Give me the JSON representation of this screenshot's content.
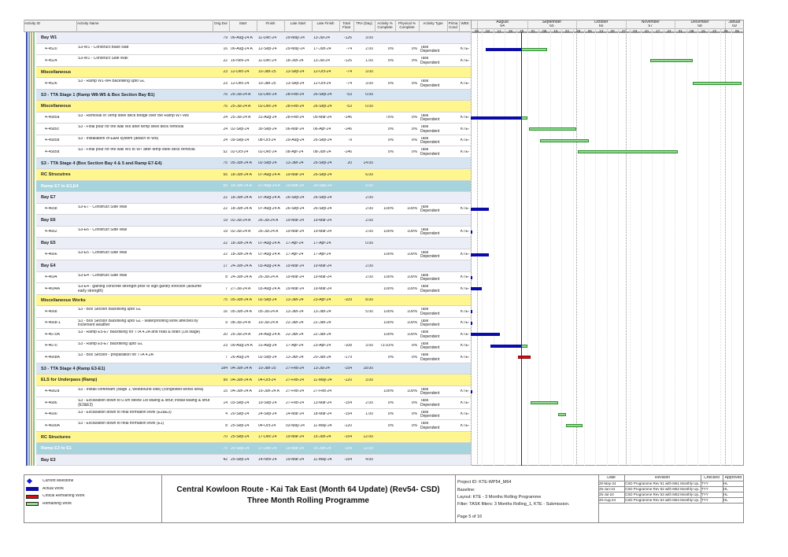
{
  "table": {
    "columns": [
      "Activity ID",
      "Activity Name",
      "Orig Dur",
      "Start",
      "Finish",
      "Late Start",
      "Late Finish",
      "Total Float",
      "TRA (Day)",
      "Activity % Complete",
      "Physical % Complete",
      "Activity Type",
      "Prima Cond",
      "WBS"
    ],
    "rows": [
      [
        null,
        "Bay W1",
        79,
        "06-Aug-24 A",
        "11-Dec-24",
        "29-May-24",
        "13-Jul-24",
        -126,
        "3.00"
      ],
      [
        "4-4520",
        "S3-W1 - Construct Base slab",
        16,
        "06-Aug-24 A",
        "12-Sep-24",
        "29-May-24",
        "17-Jun-24",
        -74,
        "2.00",
        "0%",
        "0%",
        "Task Dependent",
        null,
        "KTE-\\"
      ],
      [
        "4-4524",
        "S3-W1 - Construct Side Wall",
        22,
        "16-Nov-24",
        "11-Dec-24",
        "18-Jun-24",
        "13-Jul-24",
        -126,
        "1.00",
        "0%",
        "0%",
        "Task Dependent",
        null,
        "KTE-\\"
      ],
      [
        null,
        "Miscellaneous",
        23,
        "12-Dec-24",
        "10-Jan-25",
        "13-Sep-24",
        "12-Oct-24",
        -74,
        "3.00"
      ],
      [
        "4-4526",
        "S3 - Ramp W1-W4 Backfilling upto GL",
        23,
        "12-Dec-24",
        "10-Jan-25",
        "13-Sep-24",
        "12-Oct-24",
        -74,
        "3.00",
        "0%",
        "0%",
        "Task Dependent",
        null,
        "KTE-\\"
      ],
      [
        null,
        "S3 - TTA Stage 1 (Ramp W8-W5 & Box Section Bay B1)",
        76,
        "25-Jul-24 A",
        "02-Dec-24",
        "28-Feb-24",
        "26-Sep-24",
        -53,
        "0.00"
      ],
      [
        null,
        "Miscellaneous",
        76,
        "25-Jul-24 A",
        "02-Dec-24",
        "28-Feb-24",
        "26-Sep-24",
        -53,
        "0.00"
      ],
      [
        "4-4585a",
        "S3 - Removal of Temp steel deck bridge over the Ramp W7-W8",
        24,
        "25-Jul-24 A",
        "31-Aug-24",
        "28-Feb-24",
        "05-Mar-24",
        -146,
        null,
        "75%",
        "0%",
        "Task Dependent",
        null,
        "KTE-\\"
      ],
      [
        "4-4585c",
        "S3 - Final pour for the wall W8 after temp steel deck removal",
        24,
        "02-Sep-24",
        "30-Sep-24",
        "06-Mar-24",
        "06-Apr-24",
        -146,
        null,
        "0%",
        "0%",
        "Task Dependent",
        null,
        "KTE-\\"
      ],
      [
        "4-4585b",
        "S3 - Installation of E&M system (attach to W8)",
        24,
        "09-Sep-24",
        "08-Oct-24",
        "29-Aug-24",
        "26-Sep-24",
        -9,
        null,
        "0%",
        "0%",
        "Task Dependent",
        null,
        "KTE-\\"
      ],
      [
        "4-4585d",
        "S3 - Final pour for the wall W5 to W7 after temp steel deck removal",
        52,
        "02-Oct-24",
        "02-Dec-24",
        "08-Apr-24",
        "08-Jun-24",
        -146,
        null,
        "0%",
        "0%",
        "Task Dependent",
        null,
        "KTE-\\"
      ],
      [
        null,
        "S3 - TTA Stage 4 (Box Section Bay 4 & 5 and Ramp E7-E4)",
        75,
        "05-Jun-24 A",
        "02-Sep-24",
        "13-Jan-24",
        "26-Sep-24",
        20,
        "14.00"
      ],
      [
        null,
        "RC Strucutres",
        55,
        "18-Jun-24 A",
        "07-Aug-24 A",
        "19-Mar-24",
        "26-Sep-24",
        null,
        "6.00"
      ],
      [
        null,
        "Ramp E7 to E3,E4",
        55,
        "18-Jun-24 A",
        "07-Aug-24 A",
        "19-Mar-24",
        "26-Sep-24",
        null,
        "5.00"
      ],
      [
        null,
        "Bay E7",
        22,
        "18-Jun-24 A",
        "07-Aug-24 A",
        "26-Sep-24",
        "26-Sep-24",
        null,
        "2.00"
      ],
      [
        "4-4658",
        "S3-E7 - Construct Side Wall",
        22,
        "18-Jun-24 A",
        "07-Aug-24 A",
        "26-Sep-24",
        "26-Sep-24",
        null,
        "2.00",
        "100%",
        "100%",
        "Task Dependent",
        null,
        "KTE-\\"
      ],
      [
        null,
        "Bay E6",
        19,
        "02-Jul-24 A",
        "26-Jul-24 A",
        "19-Mar-24",
        "19-Mar-24",
        null,
        "2.00"
      ],
      [
        "4-4662",
        "S3-E6 - Construct Side Wall",
        19,
        "02-Jul-24 A",
        "26-Jul-24 A",
        "19-Mar-24",
        "19-Mar-24",
        null,
        "2.00",
        "100%",
        "100%",
        "Task Dependent",
        null,
        "KTE-\\"
      ],
      [
        null,
        "Bay E5",
        22,
        "18-Jun-24 A",
        "07-Aug-24 A",
        "17-Apr-24",
        "17-Apr-24",
        null,
        "0.00"
      ],
      [
        "4-4666",
        "S3-E5 - Construct Side Wall",
        22,
        "18-Jun-24 A",
        "07-Aug-24 A",
        "17-Apr-24",
        "17-Apr-24",
        null,
        null,
        "100%",
        "100%",
        "Task Dependent",
        null,
        "KTE-\\"
      ],
      [
        null,
        "Bay E4",
        17,
        "24-Jun-24 A",
        "03-Aug-24 A",
        "19-Mar-24",
        "19-Mar-24",
        null,
        "2.00"
      ],
      [
        "4-4694",
        "S3-E4 - Construct Side Wall",
        8,
        "24-Jun-24 A",
        "26-Jul-24 A",
        "19-Mar-24",
        "19-Mar-24",
        null,
        "2.00",
        "100%",
        "100%",
        "Task Dependent",
        null,
        "KTE-\\"
      ],
      [
        "4-4694A",
        "S3-E4 - gaining concrete strength prior to sign gantry erection (assume early strength)",
        7,
        "27-Jul-24 A",
        "03-Aug-24 A",
        "19-Mar-24",
        "19-Mar-24",
        null,
        null,
        "100%",
        "100%",
        "Task Dependent",
        null,
        "KTE-\\"
      ],
      [
        null,
        "Miscellaneous Works",
        75,
        "05-Jun-24 A",
        "02-Sep-24",
        "13-Jan-24",
        "23-Apr-24",
        -109,
        "8.00"
      ],
      [
        "4-4668",
        "S3 - Box Section Backfilling upto GL",
        16,
        "05-Jun-24 A",
        "05-Jul-24 A",
        "13-Jan-24",
        "13-Jan-24",
        null,
        "5.00",
        "100%",
        "100%",
        "Task Dependent",
        null,
        "KTE-\\"
      ],
      [
        "4-4668-1",
        "S3 - Box Section Backfilling upto GL - waterproofing work affected by inclement weather",
        9,
        "08-Jul-24 A",
        "19-Jul-24 A",
        "22-Jan-24",
        "22-Jan-24",
        null,
        null,
        "100%",
        "100%",
        "Task Dependent",
        null,
        "KTE-\\"
      ],
      [
        "4-4670A",
        "S3 - Ramp E5-E7 Backfilling for TTA 4.2A and road & drain (1st stage)",
        20,
        "25-Jul-24 A",
        "14-Aug-24 A",
        "22-Jan-24",
        "22-Jan-24",
        null,
        null,
        "100%",
        "100%",
        "Task Dependent",
        null,
        "KTE-\\"
      ],
      [
        "4-4670",
        "S3 - Ramp E5-E7 Backfilling upto GL",
        23,
        "09-Aug-24 A",
        "31-Aug-24",
        "17-Apr-24",
        "23-Apr-24",
        -108,
        "3.00",
        "73.91%",
        "0%",
        "Task Dependent",
        null,
        "KTE-\\"
      ],
      [
        "4-4668A",
        "S3 - Box Section - preparation for TTA 4.2A",
        7,
        "26-Aug-24",
        "02-Sep-24",
        "13-Jan-24",
        "20-Jan-24",
        -179,
        null,
        "0%",
        "0%",
        "Task Dependent",
        null,
        "KTE-\\"
      ],
      [
        null,
        "S3 - TTA Stage 4 (Ramp E3-E1)",
        184,
        "04-Jun-24 A",
        "10-Jan-25",
        "27-Feb-24",
        "13-Jul-24",
        -154,
        "18.00"
      ],
      [
        null,
        "ELS for Underpass (Ramp)",
        99,
        "04-Jun-24 A",
        "04-Oct-24",
        "27-Feb-24",
        "11-May-24",
        -120,
        "3.00"
      ],
      [
        "4-4682a",
        "S3 - Install cofferdam (stage 1; westbound side) (congested works area)",
        15,
        "04-Jun-24 A",
        "19-Jun-24 A",
        "27-Feb-24",
        "27-Feb-24",
        null,
        null,
        "100%",
        "100%",
        "Task Dependent",
        null,
        "KTE-\\"
      ],
      [
        "4-4686",
        "S3 - Excavation down to 0.5m below 1st waling & strut; install waling & strut (E2&E3)",
        14,
        "03-Sep-24",
        "19-Sep-24",
        "27-Feb-24",
        "13-Mar-24",
        -154,
        "2.00",
        "0%",
        "0%",
        "Task Dependent",
        null,
        "KTE-\\"
      ],
      [
        "4-4690",
        "S3 - Excavation down to final formation level (E2&E3)",
        4,
        "20-Sep-24",
        "24-Sep-24",
        "14-Mar-24",
        "18-Mar-24",
        -154,
        "1.00",
        "0%",
        "0%",
        "Task Dependent",
        null,
        "KTE-\\"
      ],
      [
        "4-4690A",
        "S3 - Excavation down to final formation level (E1)",
        8,
        "25-Sep-24",
        "04-Oct-24",
        "03-May-24",
        "11-May-24",
        -120,
        null,
        "0%",
        "0%",
        "Task Dependent",
        null,
        "KTE-\\"
      ],
      [
        null,
        "RC Structures",
        70,
        "25-Sep-24",
        "17-Dec-24",
        "19-Mar-24",
        "15-Jun-24",
        -154,
        "12.00"
      ],
      [
        null,
        "Ramp E3 to E1",
        70,
        "25-Sep-24",
        "17-Dec-24",
        "19-Mar-24",
        "15-Jun-24",
        -154,
        "12.00"
      ],
      [
        null,
        "Bay E3",
        42,
        "25-Sep-24",
        "14-Nov-24",
        "19-Mar-24",
        "11-May-24",
        -154,
        "4.00"
      ]
    ]
  },
  "timescale": {
    "months": [
      {
        "name": "August",
        "number": "64"
      },
      {
        "name": "September",
        "number": "65"
      },
      {
        "name": "October",
        "number": "66"
      },
      {
        "name": "November",
        "number": "67"
      },
      {
        "name": "December",
        "number": "68"
      },
      {
        "name": "Januar",
        "number": "69"
      }
    ],
    "weeks": [
      "28",
      "04",
      "11",
      "18",
      "25",
      "01",
      "08",
      "15",
      "22",
      "29",
      "06",
      "13",
      "20",
      "27",
      "03",
      "10",
      "17",
      "24",
      "01",
      "08",
      "15",
      "22",
      "29",
      "05"
    ]
  },
  "legend": [
    "Current Milestone",
    "Actual Work",
    "Critical Remaining Work",
    "Remaining Work"
  ],
  "title": {
    "line1": "Central Kowloon Route - Kai Tak East (Month 64 Update) (Rev54- CSD)",
    "line2": "Three Month Rolling Programme"
  },
  "project_info": {
    "project_id": "Project ID: KTE-WP54_M64",
    "baseline": "Baseline:",
    "layout": "Layout: KTE - 3 Months Rolling Programme",
    "filter": "Filter: TASK filters: 3 Months Rolling_1, KTE - Submission.",
    "page": "Page 5 of 16"
  },
  "revisions": {
    "columns": [
      "Date",
      "Revision",
      "Checked",
      "Approved"
    ],
    "rows": [
      [
        "20-May-24",
        "CSD Programme Rev 51 with M61 Monthly Up...",
        "TYY",
        "HL"
      ],
      [
        "25-Jun-24",
        "CSD Programme Rev 52 with M62 Monthly Up...",
        "TYY",
        "HL"
      ],
      [
        "25-Jul-24",
        "CSD Programme Rev 53 with M63 Monthly Up...",
        "TYY",
        "HL"
      ],
      [
        "20-Aug-24",
        "CSD Programme Rev 54 with M64 Monthly Up...",
        "TYY",
        "HL"
      ]
    ]
  }
}
